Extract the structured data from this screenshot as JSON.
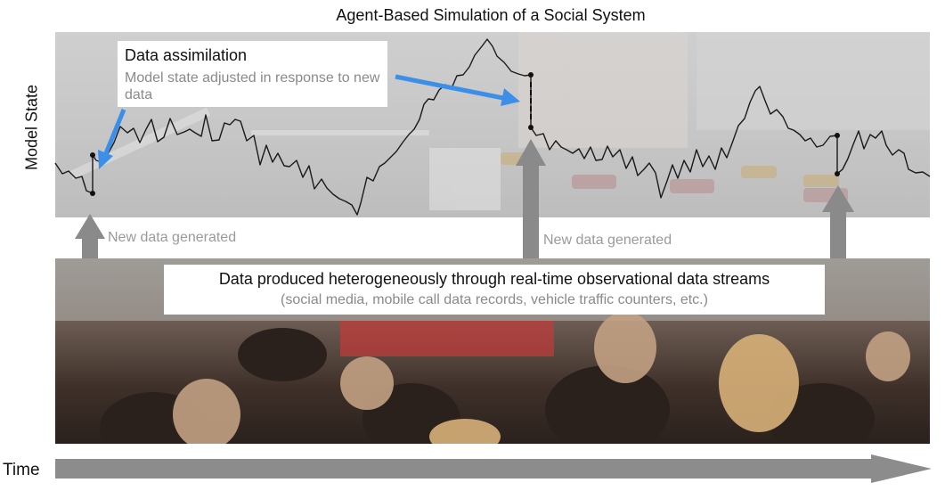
{
  "title": "Agent-Based Simulation of a Social System",
  "y_axis_label": "Model State",
  "x_axis_label": "Time",
  "assimilation_callout": {
    "title": "Data assimilation",
    "description": "Model state adjusted in response to new data"
  },
  "data_stream_callout": {
    "title": "Data produced heterogeneously through real-time observational data streams",
    "description": "(social media, mobile call data records, vehicle traffic counters, etc.)"
  },
  "new_data_labels": [
    "New data generated",
    "New data generated"
  ],
  "colors": {
    "model_line": "#1a1a1a",
    "callout_arrow": "#3b8fe8",
    "data_arrow": "#8a8a8a",
    "time_arrow": "#8c8c8c"
  },
  "icons": [
    "upward-data-arrow",
    "time-arrow",
    "callout-pointer-arrow"
  ]
}
